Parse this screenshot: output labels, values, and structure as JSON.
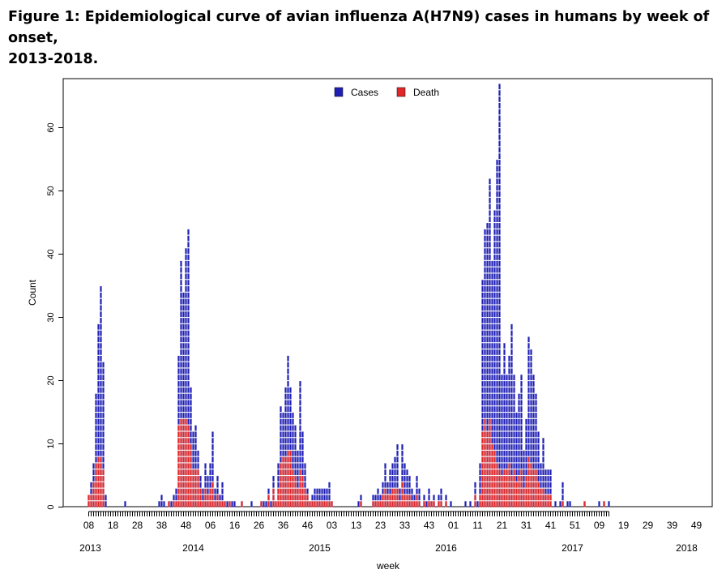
{
  "figure": {
    "title": "Figure 1: Epidemiological curve of avian influenza A(H7N9) cases in humans by week of onset,\n2013-2018."
  },
  "chart_data": {
    "type": "bar",
    "stacked": false,
    "xlabel": "week",
    "ylabel": "Count",
    "ylim": [
      0,
      68
    ],
    "y_ticks": [
      0,
      10,
      20,
      30,
      40,
      50,
      60
    ],
    "grid": false,
    "legend": {
      "position": "top-center",
      "entries": [
        "Cases",
        "Death"
      ]
    },
    "colors": {
      "Cases": "#1f1fb4",
      "Death": "#e02828"
    },
    "week_tick_labels": [
      "08",
      "18",
      "28",
      "38",
      "48",
      "06",
      "16",
      "26",
      "36",
      "46",
      "03",
      "13",
      "23",
      "33",
      "43",
      "01",
      "11",
      "21",
      "31",
      "41",
      "51",
      "09",
      "19",
      "29",
      "39",
      "49"
    ],
    "year_labels": [
      "2013",
      "2014",
      "2015",
      "2016",
      "2017",
      "2018"
    ],
    "series": [
      {
        "name": "Cases",
        "values": [
          2,
          4,
          7,
          18,
          29,
          35,
          23,
          2,
          0,
          0,
          0,
          0,
          0,
          0,
          0,
          1,
          0,
          0,
          0,
          0,
          0,
          0,
          0,
          0,
          0,
          0,
          0,
          0,
          0,
          1,
          2,
          1,
          0,
          1,
          1,
          2,
          3,
          24,
          39,
          34,
          41,
          44,
          19,
          12,
          13,
          9,
          5,
          3,
          7,
          5,
          7,
          12,
          3,
          5,
          2,
          4,
          1,
          1,
          1,
          1,
          1,
          0,
          0,
          1,
          0,
          0,
          0,
          1,
          0,
          0,
          0,
          1,
          1,
          1,
          3,
          1,
          5,
          1,
          7,
          16,
          15,
          19,
          24,
          19,
          15,
          13,
          9,
          20,
          12,
          7,
          3,
          1,
          2,
          3,
          3,
          3,
          3,
          3,
          3,
          4,
          1,
          0,
          0,
          0,
          0,
          0,
          0,
          0,
          0,
          0,
          0,
          1,
          2,
          0,
          0,
          0,
          0,
          2,
          2,
          3,
          2,
          4,
          7,
          4,
          6,
          7,
          8,
          10,
          3,
          10,
          7,
          6,
          5,
          3,
          2,
          5,
          3,
          0,
          2,
          1,
          3,
          1,
          2,
          0,
          2,
          3,
          0,
          2,
          0,
          1,
          0,
          0,
          0,
          0,
          0,
          1,
          0,
          1,
          0,
          4,
          1,
          7,
          36,
          44,
          45,
          52,
          39,
          47,
          55,
          67,
          21,
          26,
          21,
          24,
          29,
          21,
          15,
          18,
          21,
          9,
          14,
          27,
          25,
          21,
          18,
          12,
          7,
          11,
          6,
          6,
          6,
          0,
          1,
          0,
          1,
          4,
          0,
          1,
          1,
          0,
          0,
          0,
          0,
          0,
          1,
          0,
          0,
          0,
          0,
          0,
          1,
          0,
          1,
          0,
          1
        ]
      },
      {
        "name": "Death",
        "values": [
          2,
          2,
          4,
          7,
          8,
          8,
          6,
          0,
          0,
          0,
          0,
          0,
          0,
          0,
          0,
          0,
          0,
          0,
          0,
          0,
          0,
          0,
          0,
          0,
          0,
          0,
          0,
          0,
          0,
          0,
          0,
          0,
          0,
          1,
          0,
          1,
          1,
          13,
          14,
          14,
          14,
          13,
          10,
          6,
          6,
          6,
          3,
          1,
          3,
          2,
          3,
          4,
          1,
          2,
          1,
          1,
          1,
          0,
          1,
          0,
          0,
          0,
          0,
          1,
          0,
          0,
          0,
          0,
          0,
          0,
          0,
          1,
          0,
          0,
          2,
          0,
          3,
          1,
          3,
          7,
          8,
          8,
          9,
          9,
          6,
          5,
          3,
          6,
          5,
          3,
          2,
          1,
          1,
          1,
          1,
          1,
          1,
          1,
          1,
          1,
          1,
          0,
          0,
          0,
          0,
          0,
          0,
          0,
          0,
          0,
          0,
          0,
          1,
          0,
          0,
          0,
          0,
          1,
          1,
          1,
          1,
          2,
          3,
          2,
          2,
          3,
          3,
          3,
          1,
          4,
          2,
          2,
          2,
          1,
          1,
          2,
          1,
          0,
          1,
          0,
          1,
          1,
          1,
          0,
          1,
          1,
          0,
          1,
          0,
          0,
          0,
          0,
          0,
          0,
          0,
          0,
          0,
          0,
          0,
          2,
          0,
          2,
          12,
          14,
          12,
          14,
          10,
          9,
          7,
          6,
          5,
          6,
          6,
          7,
          5,
          6,
          4,
          5,
          6,
          3,
          5,
          8,
          7,
          6,
          6,
          4,
          3,
          3,
          2,
          2,
          2,
          0,
          0,
          0,
          0,
          1,
          0,
          0,
          0,
          0,
          0,
          0,
          0,
          0,
          1,
          0,
          0,
          0,
          0,
          0,
          0,
          0,
          1,
          0,
          0
        ]
      }
    ]
  }
}
